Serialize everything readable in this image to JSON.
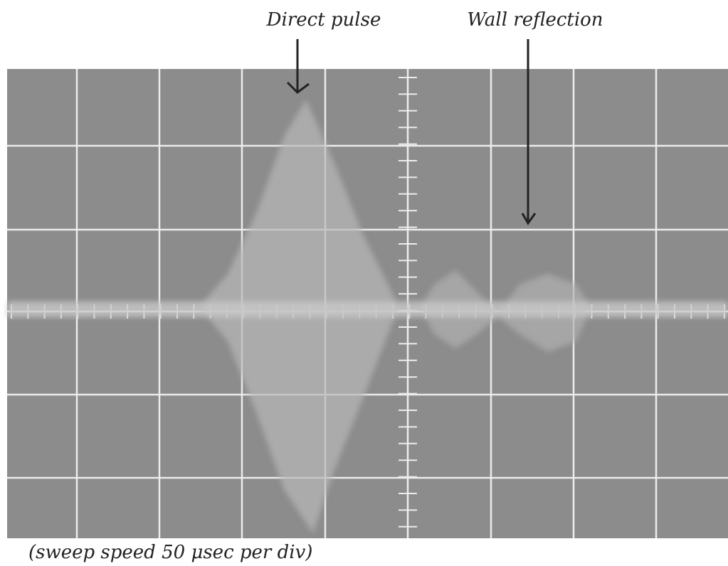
{
  "annotations": [
    "Direct pulse",
    "Wall reflection"
  ],
  "caption": "(sweep speed 50 μsec per div)"
}
